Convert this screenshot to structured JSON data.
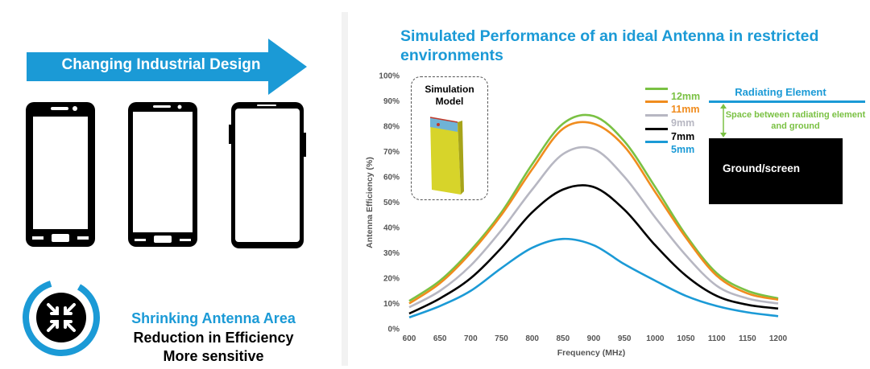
{
  "left_panel": {
    "arrow_label": "Changing Industrial Design",
    "headline_1": "Shrinking Antenna Area",
    "headline_2": "Reduction in Efficiency",
    "headline_3": "More sensitive"
  },
  "diagram": {
    "simulation_label": "Simulation Model",
    "radiating_element": "Radiating Element",
    "space_label": "Space between radiating element and ground",
    "ground_label": "Ground/screen"
  },
  "colors": {
    "accent_blue": "#1b9ad6",
    "green": "#7ac143",
    "orange": "#f08c1e",
    "gray": "#b7b7c2",
    "black": "#000000"
  },
  "chart_data": {
    "type": "line",
    "title": "Simulated Performance of an ideal Antenna in restricted environments",
    "xlabel": "Frequency (MHz)",
    "ylabel": "Antenna Efficiency (%)",
    "xlim": [
      600,
      1200
    ],
    "ylim": [
      0,
      100
    ],
    "xticks": [
      "600",
      "650",
      "700",
      "750",
      "800",
      "850",
      "900",
      "950",
      "1000",
      "1050",
      "1100",
      "1150",
      "1200"
    ],
    "yticks": [
      "0%",
      "10%",
      "20%",
      "30%",
      "40%",
      "50%",
      "60%",
      "70%",
      "80%",
      "90%",
      "100%"
    ],
    "x": [
      600,
      650,
      700,
      750,
      800,
      850,
      900,
      950,
      1000,
      1050,
      1100,
      1150,
      1200
    ],
    "legend_position": "top-right",
    "series": [
      {
        "name": "12mm",
        "color": "#7ac143",
        "values": [
          11,
          19,
          31,
          46,
          65,
          81,
          84,
          74,
          56,
          37,
          22,
          15,
          12
        ]
      },
      {
        "name": "11mm",
        "color": "#f08c1e",
        "values": [
          10,
          18,
          30,
          45,
          63,
          79,
          81,
          72,
          54,
          36,
          21,
          14,
          11.5
        ]
      },
      {
        "name": "9mm",
        "color": "#b7b7c2",
        "values": [
          8.5,
          15,
          25,
          39,
          55,
          69,
          71,
          60,
          44,
          29,
          17,
          12,
          10
        ]
      },
      {
        "name": "7mm",
        "color": "#000000",
        "values": [
          6,
          12,
          20,
          32,
          46,
          55,
          56,
          47,
          33,
          21,
          13,
          9.5,
          8
        ]
      },
      {
        "name": "5mm",
        "color": "#1b9ad6",
        "values": [
          4.5,
          9,
          15,
          24,
          32,
          35.5,
          33,
          25.5,
          19,
          13,
          9,
          6.5,
          5
        ]
      }
    ]
  }
}
